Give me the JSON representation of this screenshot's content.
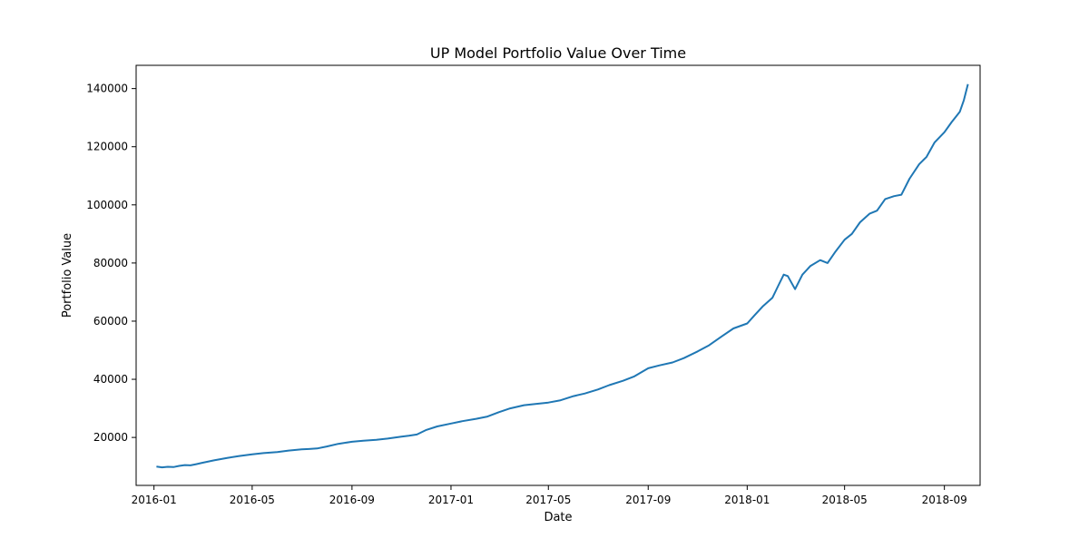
{
  "chart_data": {
    "type": "line",
    "title": "UP Model Portfolio Value Over Time",
    "xlabel": "Date",
    "ylabel": "Portfolio Value",
    "xlim": [
      "2015-12-10",
      "2018-10-15"
    ],
    "ylim": [
      3500,
      148000
    ],
    "x_ticks": [
      "2016-01",
      "2016-05",
      "2016-09",
      "2017-01",
      "2017-05",
      "2017-09",
      "2018-01",
      "2018-05",
      "2018-09"
    ],
    "y_ticks": [
      20000,
      40000,
      60000,
      80000,
      100000,
      120000,
      140000
    ],
    "y_tick_labels": [
      "20000",
      "40000",
      "60000",
      "80000",
      "100000",
      "120000",
      "140000"
    ],
    "grid": false,
    "legend": "none",
    "colors": {
      "line": "#1f77b4",
      "axes": "#000000",
      "background": "#ffffff"
    },
    "series": [
      {
        "x": [
          "2016-01-04",
          "2016-01-11",
          "2016-01-18",
          "2016-01-25",
          "2016-02-01",
          "2016-02-08",
          "2016-02-15",
          "2016-02-22",
          "2016-03-01",
          "2016-03-15",
          "2016-04-01",
          "2016-04-15",
          "2016-05-01",
          "2016-05-15",
          "2016-06-01",
          "2016-06-15",
          "2016-07-01",
          "2016-07-10",
          "2016-07-20",
          "2016-08-01",
          "2016-08-15",
          "2016-09-01",
          "2016-09-15",
          "2016-10-01",
          "2016-10-15",
          "2016-11-01",
          "2016-11-10",
          "2016-11-20",
          "2016-12-01",
          "2016-12-15",
          "2017-01-01",
          "2017-01-15",
          "2017-02-01",
          "2017-02-15",
          "2017-03-01",
          "2017-03-15",
          "2017-04-01",
          "2017-04-15",
          "2017-05-01",
          "2017-05-15",
          "2017-06-01",
          "2017-06-15",
          "2017-07-01",
          "2017-07-15",
          "2017-08-01",
          "2017-08-15",
          "2017-09-01",
          "2017-09-15",
          "2017-10-01",
          "2017-10-15",
          "2017-11-01",
          "2017-11-15",
          "2017-12-01",
          "2017-12-15",
          "2018-01-01",
          "2018-01-10",
          "2018-01-20",
          "2018-02-01",
          "2018-02-08",
          "2018-02-15",
          "2018-02-20",
          "2018-03-01",
          "2018-03-10",
          "2018-03-20",
          "2018-04-01",
          "2018-04-10",
          "2018-04-20",
          "2018-05-01",
          "2018-05-10",
          "2018-05-20",
          "2018-06-01",
          "2018-06-10",
          "2018-06-20",
          "2018-07-01",
          "2018-07-10",
          "2018-07-20",
          "2018-08-01",
          "2018-08-10",
          "2018-08-20",
          "2018-09-01",
          "2018-09-10",
          "2018-09-20",
          "2018-09-25",
          "2018-09-30"
        ],
        "values": [
          10000,
          9700,
          9900,
          9800,
          10200,
          10500,
          10400,
          10800,
          11300,
          12100,
          13000,
          13600,
          14200,
          14600,
          15000,
          15500,
          15900,
          16000,
          16200,
          16900,
          17800,
          18500,
          18900,
          19200,
          19600,
          20300,
          20600,
          21000,
          22500,
          23800,
          24800,
          25600,
          26400,
          27200,
          28700,
          30000,
          31100,
          31500,
          32000,
          32700,
          34200,
          35100,
          36500,
          38000,
          39500,
          41000,
          43800,
          44800,
          45800,
          47300,
          49600,
          51700,
          54800,
          57500,
          59200,
          62000,
          65000,
          68000,
          72000,
          76000,
          75500,
          71000,
          76000,
          79000,
          81000,
          80000,
          84000,
          88000,
          90000,
          94000,
          97000,
          98000,
          102000,
          103000,
          103500,
          109000,
          114000,
          116500,
          121500,
          125000,
          128500,
          132000,
          136000,
          141500
        ]
      }
    ]
  }
}
